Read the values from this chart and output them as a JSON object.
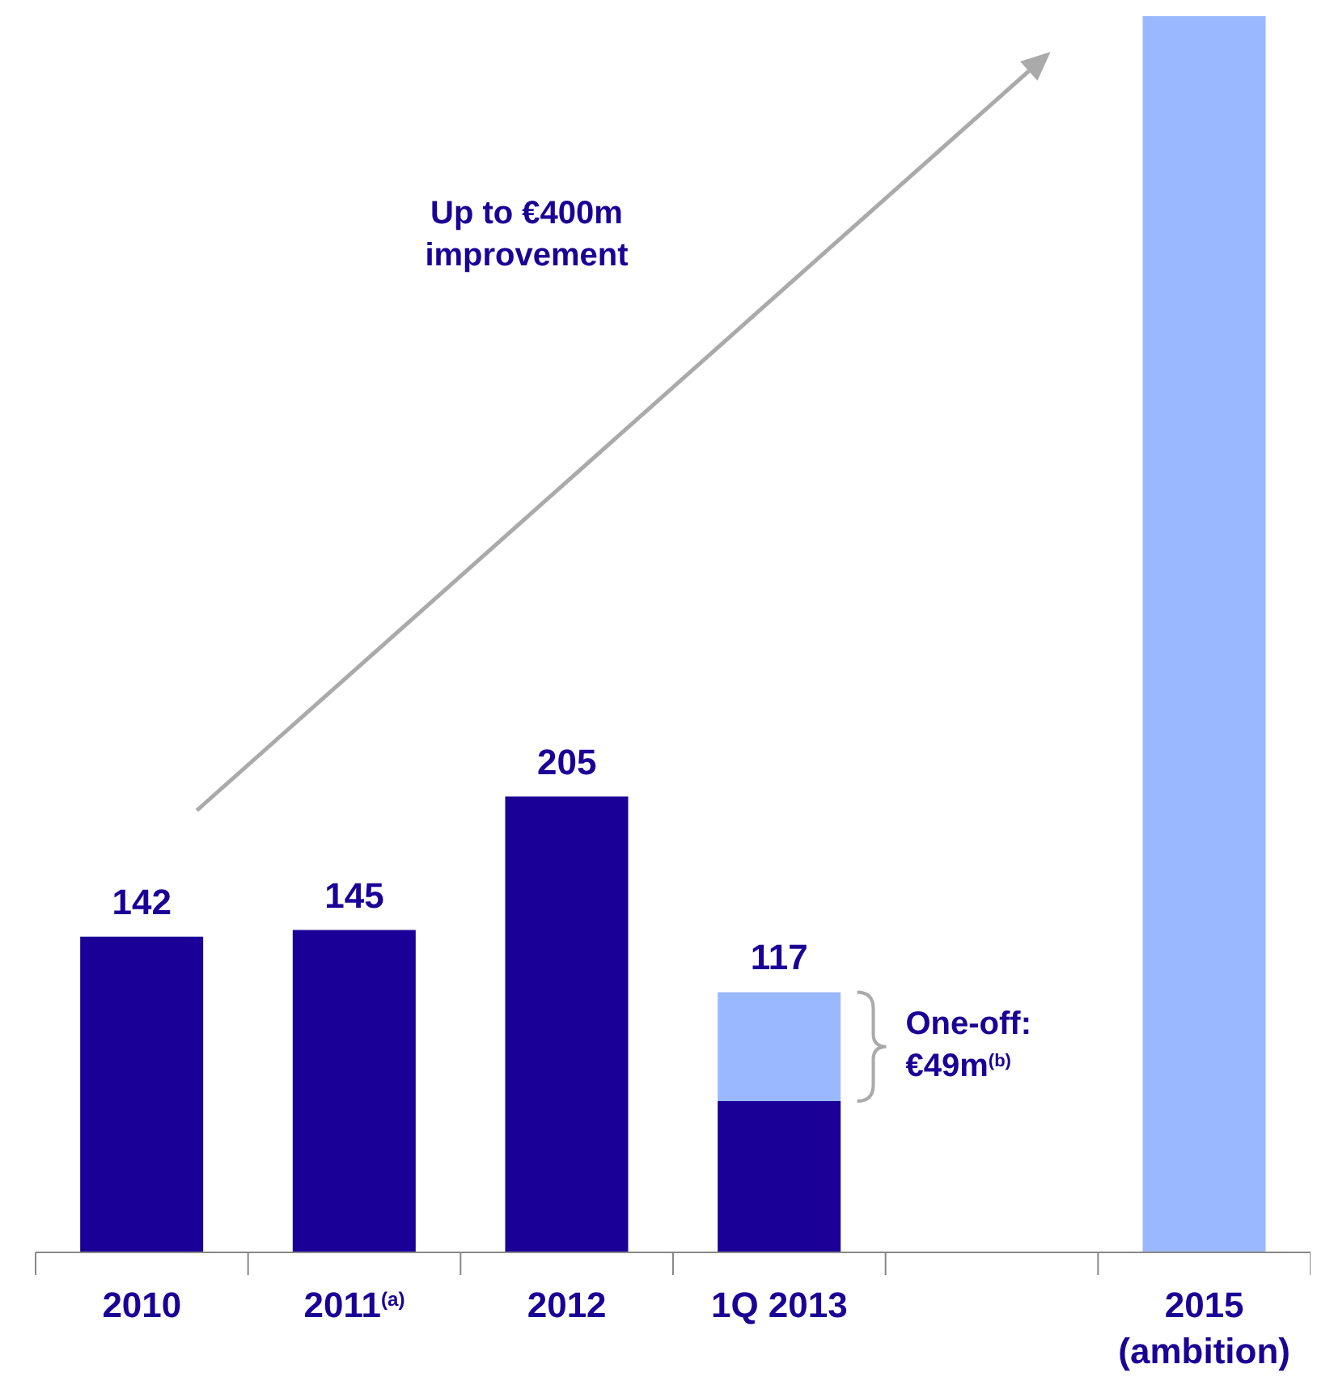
{
  "chart_data": {
    "type": "bar",
    "stacked": true,
    "categories": [
      "2010",
      "2011$^{(a)}$",
      "2012",
      "1Q 2013",
      null,
      "2015 (ambition)"
    ],
    "series": [
      {
        "color": "#1a0096",
        "values": [
          142,
          145,
          205,
          68,
          null,
          null
        ],
        "value_labels": [
          "142",
          "145",
          "205",
          null,
          null,
          null
        ]
      },
      {
        "color": "#9ab8ff",
        "values": [
          null,
          null,
          null,
          49,
          null,
          556
        ]
      }
    ],
    "totals": [
      null,
      null,
      null,
      "117",
      null,
      null
    ],
    "annotations": [
      "Up to €400m improvement",
      "One-off: €49m$^{(b)}$"
    ]
  }
}
